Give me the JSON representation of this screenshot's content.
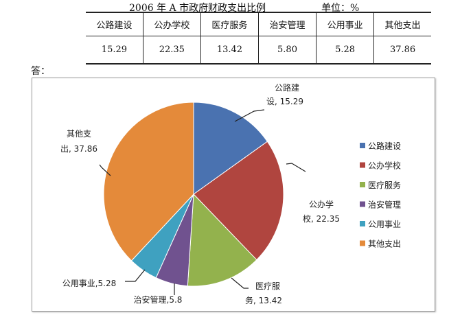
{
  "header": {
    "title": "2006 年 A 市政府财政支出比例",
    "unit": "单位：%"
  },
  "table": {
    "headers": [
      "公路建设",
      "公办学校",
      "医疗服务",
      "治安管理",
      "公用事业",
      "其他支出"
    ],
    "values": [
      "15.29",
      "22.35",
      "13.42",
      "5.80",
      "5.28",
      "37.86"
    ]
  },
  "answer_label": "答：",
  "chart_data": {
    "type": "pie",
    "categories": [
      "公路建设",
      "公办学校",
      "医疗服务",
      "治安管理",
      "公用事业",
      "其他支出"
    ],
    "values": [
      15.29,
      22.35,
      13.42,
      5.8,
      5.28,
      37.86
    ],
    "colors": [
      "#4a72b0",
      "#b0453f",
      "#93b24d",
      "#70528f",
      "#3fa1c0",
      "#e48a3a"
    ],
    "data_labels": [
      [
        "公路建",
        "设, 15.29"
      ],
      [
        "公办学",
        "校, 22.35"
      ],
      [
        "医疗服",
        "务, 13.42"
      ],
      [
        "治安管理,5.8"
      ],
      [
        "公用事业,5.28"
      ],
      [
        "其他支",
        "出, 37.86"
      ]
    ],
    "legend": "right"
  }
}
